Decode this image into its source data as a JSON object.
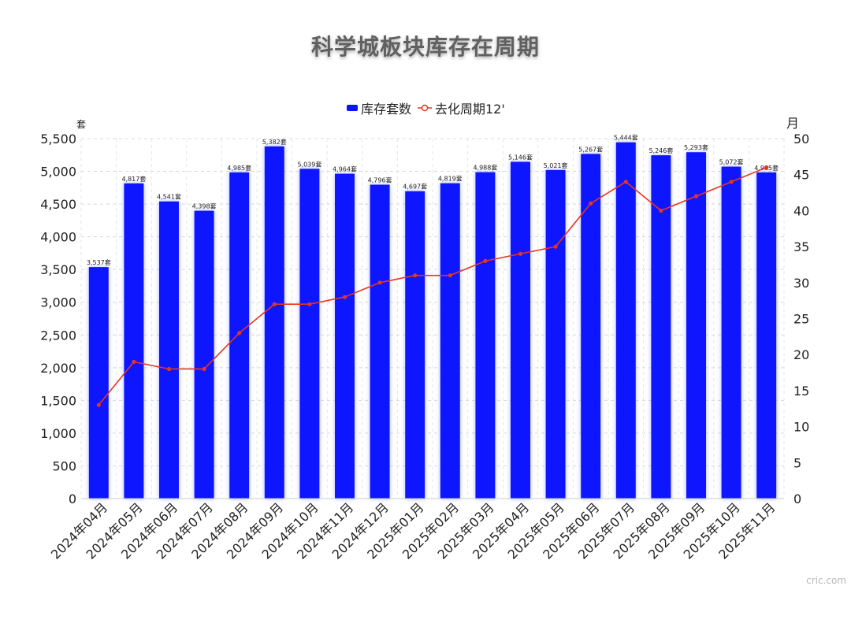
{
  "chart_data": {
    "type": "bar",
    "title": "科学城板块库存在周期",
    "categories": [
      "2024年04月",
      "2024年05月",
      "2024年06月",
      "2024年07月",
      "2024年08月",
      "2024年09月",
      "2024年10月",
      "2024年11月",
      "2024年12月",
      "2025年01月",
      "2025年02月",
      "2025年03月",
      "2025年04月",
      "2025年05月",
      "2025年06月",
      "2025年07月",
      "2025年08月",
      "2025年09月",
      "2025年10月",
      "2025年11月"
    ],
    "series": [
      {
        "name": "库存套数",
        "type": "bar",
        "axis": "left",
        "color": "#0a14ff",
        "values": [
          3537,
          4817,
          4541,
          4398,
          4985,
          5382,
          5039,
          4964,
          4796,
          4697,
          4819,
          4988,
          5146,
          5021,
          5267,
          5444,
          5246,
          5293,
          5072,
          4985
        ],
        "labels": [
          "3,537套",
          "4,817套",
          "4,541套",
          "4,398套",
          "4,985套",
          "5,382套",
          "5,039套",
          "4,964套",
          "4,796套",
          "4,697套",
          "4,819套",
          "4,988套",
          "5,146套",
          "5,021套",
          "5,267套",
          "5,444套",
          "5,246套",
          "5,293套",
          "5,072套",
          "4,985套"
        ]
      },
      {
        "name": "去化周期12'",
        "type": "line",
        "axis": "right",
        "color": "#e8341c",
        "values": [
          13,
          19,
          18,
          18,
          23,
          27,
          27,
          28,
          30,
          31,
          31,
          33,
          34,
          35,
          41,
          44,
          40,
          42,
          44,
          46
        ]
      }
    ],
    "y_left": {
      "unit": "套",
      "ylim": [
        0,
        5500
      ],
      "ticks": [
        "0",
        "500",
        "1,000",
        "1,500",
        "2,000",
        "2,500",
        "3,000",
        "3,500",
        "4,000",
        "4,500",
        "5,000",
        "5,500"
      ]
    },
    "y_right": {
      "unit": "月",
      "ylim": [
        0,
        50
      ],
      "ticks": [
        "0",
        "5",
        "10",
        "15",
        "20",
        "25",
        "30",
        "35",
        "40",
        "45",
        "50"
      ]
    },
    "grid": true,
    "legend": "top-center"
  },
  "watermark": "cric.com"
}
